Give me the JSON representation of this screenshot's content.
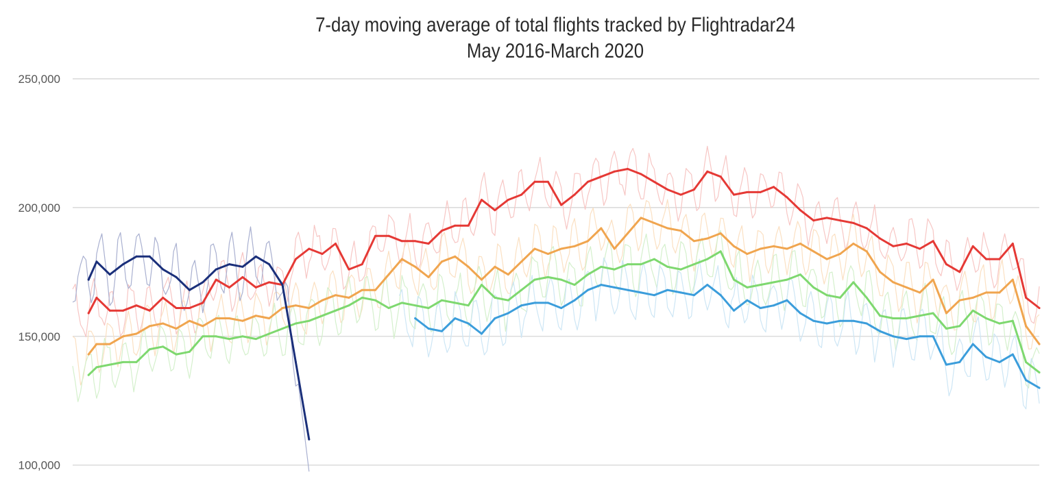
{
  "chart_data": {
    "type": "line",
    "title": "7-day moving average of total flights tracked by Flightradar24",
    "subtitle": "May 2016-March 2020",
    "xlabel": "",
    "ylabel": "",
    "ylim": [
      93000,
      250000
    ],
    "y_ticks": [
      {
        "value": 100000,
        "label": "100,000"
      },
      {
        "value": 150000,
        "label": "150,000"
      },
      {
        "value": 200000,
        "label": "200,000"
      },
      {
        "value": 250000,
        "label": "250,000"
      }
    ],
    "grid": true,
    "legend": "none",
    "x_domain": [
      1,
      365
    ],
    "series": [
      {
        "color": "#e53935",
        "raw_color": "#f7c6c4",
        "x": [
          7,
          10,
          15,
          20,
          25,
          30,
          35,
          40,
          45,
          50,
          55,
          60,
          65,
          70,
          75,
          80,
          85,
          90,
          95,
          100,
          105,
          110,
          115,
          120,
          125,
          130,
          135,
          140,
          145,
          150,
          155,
          160,
          165,
          170,
          175,
          180,
          185,
          190,
          195,
          200,
          205,
          210,
          215,
          220,
          225,
          230,
          235,
          240,
          245,
          250,
          255,
          260,
          265,
          270,
          275,
          280,
          285,
          290,
          295,
          300,
          305,
          310,
          315,
          320,
          325,
          330,
          335,
          340,
          345,
          350,
          355,
          360,
          365
        ],
        "y": [
          159000,
          165000,
          160000,
          160000,
          162000,
          160000,
          165000,
          161000,
          161000,
          163000,
          172000,
          169000,
          173000,
          169000,
          171000,
          170000,
          180000,
          184000,
          182000,
          186000,
          176000,
          178000,
          189000,
          189000,
          187000,
          187000,
          186000,
          191000,
          193000,
          193000,
          203000,
          199000,
          203000,
          205000,
          210000,
          210000,
          201000,
          205000,
          210000,
          212000,
          214000,
          215000,
          213000,
          210000,
          207000,
          205000,
          207000,
          214000,
          212000,
          205000,
          206000,
          206000,
          208000,
          204000,
          199000,
          195000,
          196000,
          195000,
          194000,
          192000,
          188000,
          185000,
          186000,
          184000,
          187000,
          178000,
          175000,
          185000,
          180000,
          180000,
          186000,
          165000,
          161000
        ]
      },
      {
        "color": "#f0a54f",
        "raw_color": "#fbe0c2",
        "x": [
          7,
          10,
          15,
          20,
          25,
          30,
          35,
          40,
          45,
          50,
          55,
          60,
          65,
          70,
          75,
          80,
          85,
          90,
          95,
          100,
          105,
          110,
          115,
          120,
          125,
          130,
          135,
          140,
          145,
          150,
          155,
          160,
          165,
          170,
          175,
          180,
          185,
          190,
          195,
          200,
          205,
          210,
          215,
          220,
          225,
          230,
          235,
          240,
          245,
          250,
          255,
          260,
          265,
          270,
          275,
          280,
          285,
          290,
          295,
          300,
          305,
          310,
          315,
          320,
          325,
          330,
          335,
          340,
          345,
          350,
          355,
          360,
          365
        ],
        "y": [
          143000,
          147000,
          147000,
          150000,
          151000,
          154000,
          155000,
          153000,
          156000,
          154000,
          157000,
          157000,
          156000,
          158000,
          157000,
          161000,
          162000,
          161000,
          164000,
          166000,
          165000,
          168000,
          168000,
          174000,
          180000,
          177000,
          173000,
          179000,
          181000,
          177000,
          172000,
          177000,
          174000,
          179000,
          184000,
          182000,
          184000,
          185000,
          187000,
          192000,
          184000,
          190000,
          196000,
          194000,
          192000,
          191000,
          187000,
          188000,
          190000,
          185000,
          182000,
          184000,
          185000,
          184000,
          186000,
          183000,
          180000,
          182000,
          186000,
          183000,
          175000,
          171000,
          169000,
          167000,
          172000,
          159000,
          164000,
          165000,
          167000,
          167000,
          172000,
          154000,
          147000
        ]
      },
      {
        "color": "#7ed86f",
        "raw_color": "#d4f0cc",
        "x": [
          7,
          10,
          15,
          20,
          25,
          30,
          35,
          40,
          45,
          50,
          55,
          60,
          65,
          70,
          75,
          80,
          85,
          90,
          95,
          100,
          105,
          110,
          115,
          120,
          125,
          130,
          135,
          140,
          145,
          150,
          155,
          160,
          165,
          170,
          175,
          180,
          185,
          190,
          195,
          200,
          205,
          210,
          215,
          220,
          225,
          230,
          235,
          240,
          245,
          250,
          255,
          260,
          265,
          270,
          275,
          280,
          285,
          290,
          295,
          300,
          305,
          310,
          315,
          320,
          325,
          330,
          335,
          340,
          345,
          350,
          355,
          360,
          365
        ],
        "y": [
          135000,
          138000,
          139000,
          140000,
          140000,
          145000,
          146000,
          143000,
          144000,
          150000,
          150000,
          149000,
          150000,
          149000,
          151000,
          153000,
          155000,
          156000,
          158000,
          160000,
          162000,
          165000,
          164000,
          161000,
          163000,
          162000,
          161000,
          164000,
          163000,
          162000,
          170000,
          165000,
          164000,
          168000,
          172000,
          173000,
          172000,
          170000,
          174000,
          177000,
          176000,
          178000,
          178000,
          180000,
          177000,
          176000,
          178000,
          180000,
          183000,
          172000,
          169000,
          170000,
          171000,
          172000,
          174000,
          169000,
          166000,
          165000,
          171000,
          165000,
          158000,
          157000,
          157000,
          158000,
          159000,
          153000,
          154000,
          160000,
          157000,
          155000,
          156000,
          140000,
          136000
        ]
      },
      {
        "color": "#3b9ddb",
        "raw_color": "#cde6f5",
        "x": [
          130,
          135,
          140,
          145,
          150,
          155,
          160,
          165,
          170,
          175,
          180,
          185,
          190,
          195,
          200,
          205,
          210,
          215,
          220,
          225,
          230,
          235,
          240,
          245,
          250,
          255,
          260,
          265,
          270,
          275,
          280,
          285,
          290,
          295,
          300,
          305,
          310,
          315,
          320,
          325,
          330,
          335,
          340,
          345,
          350,
          355,
          360,
          365
        ],
        "y": [
          157000,
          153000,
          152000,
          157000,
          155000,
          151000,
          157000,
          159000,
          162000,
          163000,
          163000,
          161000,
          164000,
          168000,
          170000,
          169000,
          168000,
          167000,
          166000,
          168000,
          167000,
          166000,
          170000,
          166000,
          160000,
          164000,
          161000,
          162000,
          164000,
          159000,
          156000,
          155000,
          156000,
          156000,
          155000,
          152000,
          150000,
          149000,
          150000,
          150000,
          139000,
          140000,
          147000,
          142000,
          140000,
          143000,
          133000,
          130000
        ]
      },
      {
        "color": "#1a2f7a",
        "raw_color": "#a9b0d0",
        "x": [
          7,
          10,
          15,
          20,
          25,
          30,
          35,
          40,
          45,
          50,
          55,
          60,
          65,
          70,
          75,
          80,
          85,
          90
        ],
        "y": [
          172000,
          179000,
          174000,
          178000,
          181000,
          181000,
          176000,
          173000,
          168000,
          171000,
          176000,
          178000,
          177000,
          181000,
          178000,
          170000,
          140000,
          110000
        ]
      }
    ]
  }
}
